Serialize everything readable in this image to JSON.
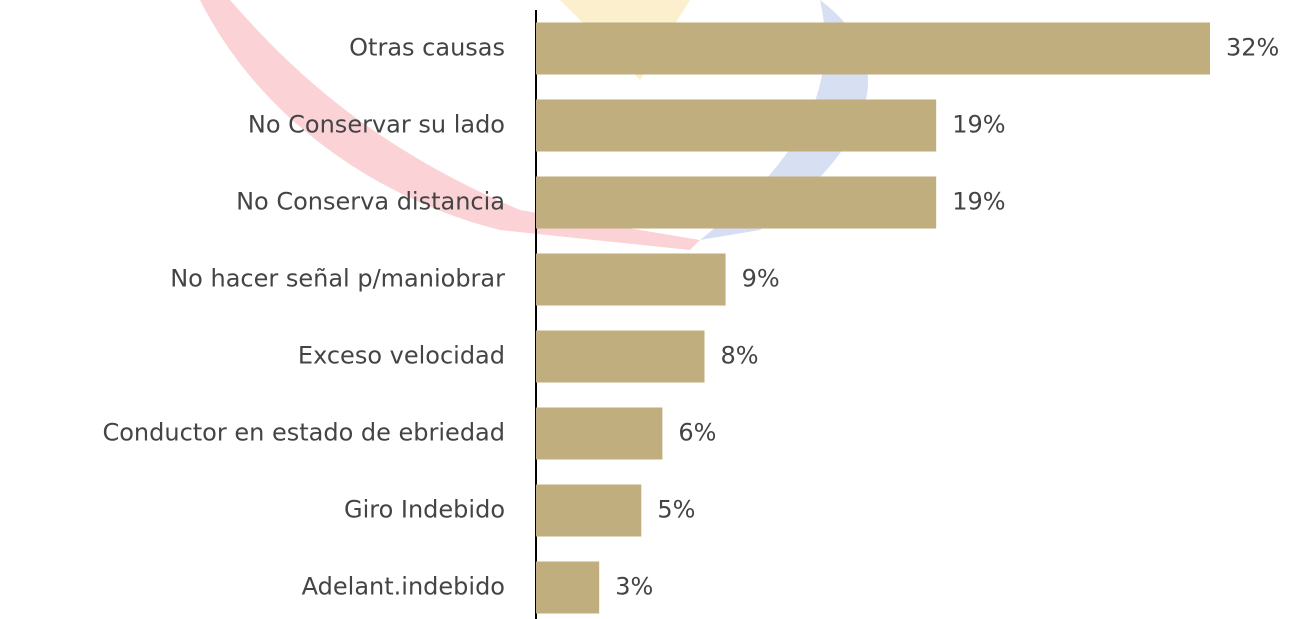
{
  "chart_data": {
    "type": "bar",
    "orientation": "horizontal",
    "categories": [
      "Otras causas",
      "No Conservar su lado",
      "No Conserva distancia",
      "No hacer señal p/maniobrar",
      "Exceso velocidad",
      "Conductor en estado de ebriedad",
      "Giro Indebido",
      "Adelant.indebido"
    ],
    "values": [
      32,
      19,
      19,
      9,
      8,
      6,
      5,
      3
    ],
    "value_labels": [
      "32%",
      "19%",
      "19%",
      "9%",
      "8%",
      "6%",
      "5%",
      "3%"
    ],
    "color": "#c0ae7e"
  }
}
